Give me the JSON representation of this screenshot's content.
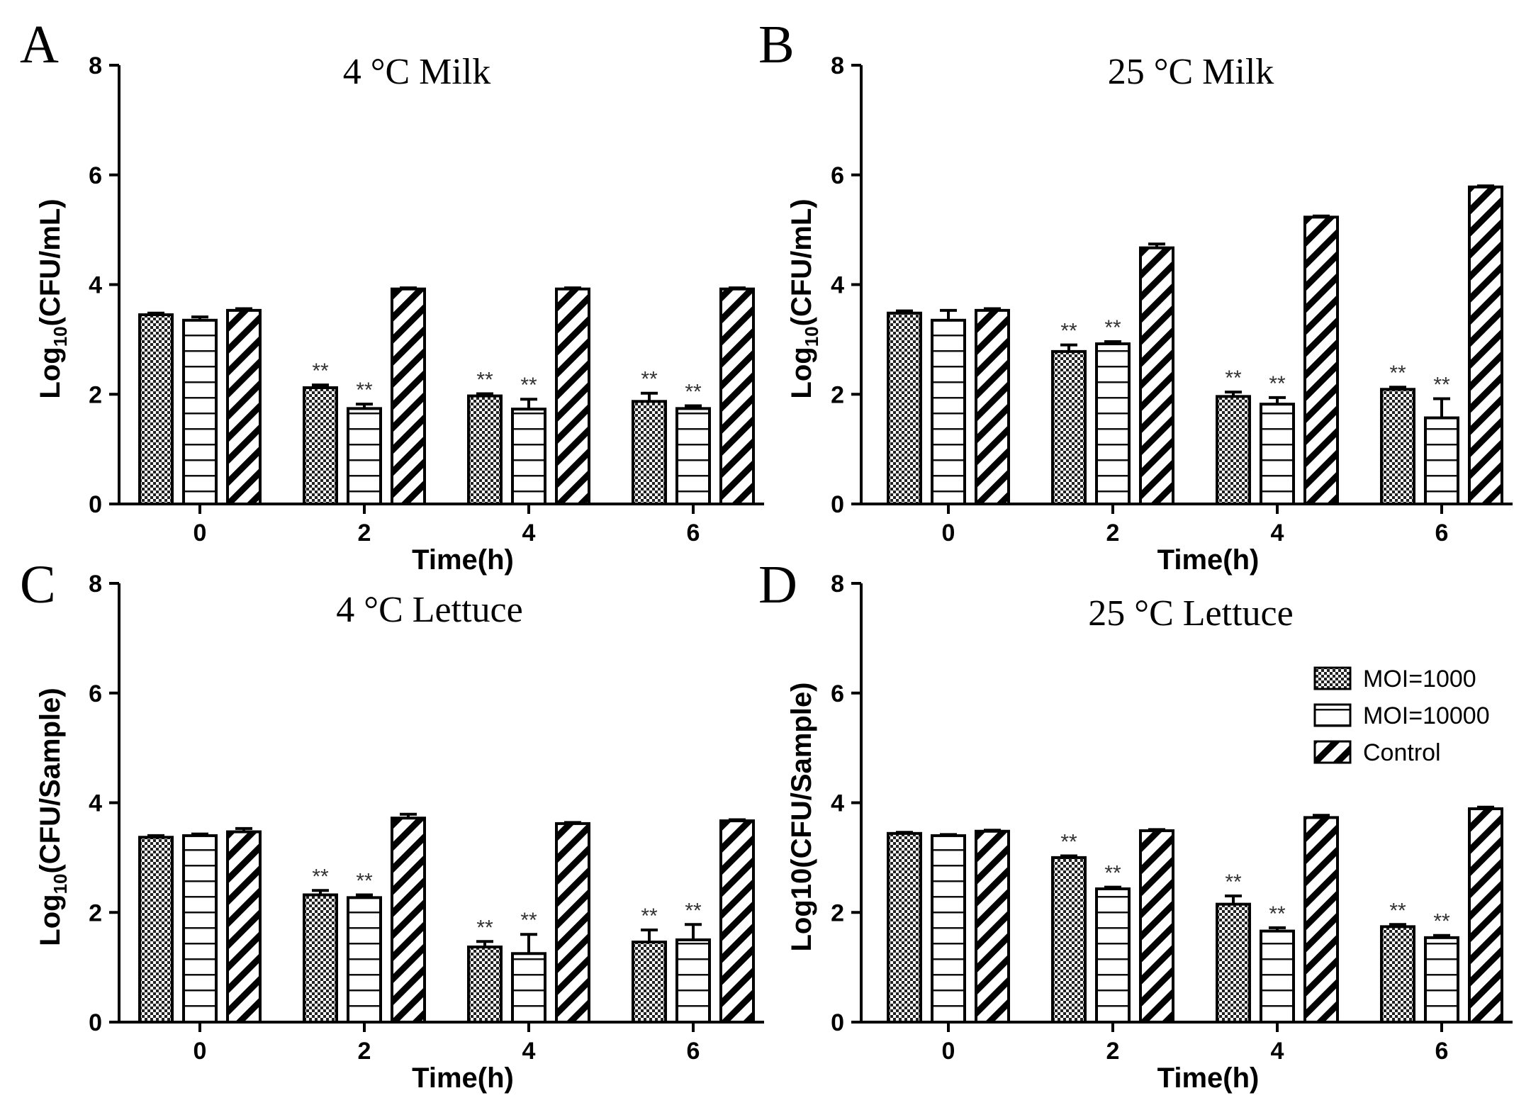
{
  "chart_data": [
    {
      "type": "bar",
      "panel_letter": "A",
      "title": "4 °C Milk",
      "xlabel": "Time(h)",
      "ylabel_parts": [
        "Log",
        "10",
        "(CFU/mL)"
      ],
      "ylim": [
        0,
        8
      ],
      "yticks": [
        0,
        2,
        4,
        6,
        8
      ],
      "categories": [
        "0",
        "2",
        "4",
        "6"
      ],
      "series": [
        {
          "name": "MOI=1000",
          "values": [
            3.45,
            2.12,
            1.97,
            1.87
          ],
          "errors": [
            0.03,
            0.05,
            0.04,
            0.15
          ],
          "sig": [
            "",
            "**",
            "**",
            "**"
          ]
        },
        {
          "name": "MOI=10000",
          "values": [
            3.35,
            1.74,
            1.73,
            1.74
          ],
          "errors": [
            0.06,
            0.08,
            0.18,
            0.05
          ],
          "sig": [
            "",
            "**",
            "**",
            "**"
          ]
        },
        {
          "name": "Control",
          "values": [
            3.53,
            3.92,
            3.92,
            3.92
          ],
          "errors": [
            0.03,
            0.02,
            0.02,
            0.02
          ],
          "sig": [
            "",
            "",
            "",
            ""
          ]
        }
      ]
    },
    {
      "type": "bar",
      "panel_letter": "B",
      "title": "25 °C Milk",
      "xlabel": "Time(h)",
      "ylabel_parts": [
        "Log",
        "10",
        "(CFU/mL)"
      ],
      "ylim": [
        0,
        8
      ],
      "yticks": [
        0,
        2,
        4,
        6,
        8
      ],
      "categories": [
        "0",
        "2",
        "4",
        "6"
      ],
      "series": [
        {
          "name": "MOI=1000",
          "values": [
            3.48,
            2.78,
            1.96,
            2.09
          ],
          "errors": [
            0.04,
            0.12,
            0.08,
            0.04
          ],
          "sig": [
            "",
            "**",
            "**",
            "**"
          ]
        },
        {
          "name": "MOI=10000",
          "values": [
            3.35,
            2.92,
            1.82,
            1.57
          ],
          "errors": [
            0.18,
            0.04,
            0.12,
            0.35
          ],
          "sig": [
            "",
            "**",
            "**",
            "**"
          ]
        },
        {
          "name": "Control",
          "values": [
            3.53,
            4.67,
            5.23,
            5.78
          ],
          "errors": [
            0.03,
            0.07,
            0.02,
            0.02
          ],
          "sig": [
            "",
            "",
            "",
            ""
          ]
        }
      ]
    },
    {
      "type": "bar",
      "panel_letter": "C",
      "title": "4 °C Lettuce",
      "xlabel": "Time(h)",
      "ylabel_parts": [
        "Log",
        "10",
        "(CFU/Sample)"
      ],
      "ylim": [
        0,
        8
      ],
      "yticks": [
        0,
        2,
        4,
        6,
        8
      ],
      "categories": [
        "0",
        "2",
        "4",
        "6"
      ],
      "series": [
        {
          "name": "MOI=1000",
          "values": [
            3.37,
            2.32,
            1.37,
            1.46
          ],
          "errors": [
            0.03,
            0.08,
            0.1,
            0.22
          ],
          "sig": [
            "",
            "**",
            "**",
            "**"
          ]
        },
        {
          "name": "MOI=10000",
          "values": [
            3.4,
            2.27,
            1.25,
            1.5
          ],
          "errors": [
            0.03,
            0.05,
            0.35,
            0.28
          ],
          "sig": [
            "",
            "**",
            "**",
            "**"
          ]
        },
        {
          "name": "Control",
          "values": [
            3.47,
            3.72,
            3.62,
            3.67
          ],
          "errors": [
            0.06,
            0.07,
            0.02,
            0.02
          ],
          "sig": [
            "",
            "",
            "",
            ""
          ]
        }
      ]
    },
    {
      "type": "bar",
      "panel_letter": "D",
      "title": "25 °C Lettuce",
      "xlabel": "Time(h)",
      "ylabel_parts": [
        "Log10(CFU/Sample)"
      ],
      "ylim": [
        0,
        8
      ],
      "yticks": [
        0,
        2,
        4,
        6,
        8
      ],
      "categories": [
        "0",
        "2",
        "4",
        "6"
      ],
      "series": [
        {
          "name": "MOI=1000",
          "values": [
            3.44,
            3.0,
            2.15,
            1.74
          ],
          "errors": [
            0.02,
            0.03,
            0.15,
            0.04
          ],
          "sig": [
            "",
            "**",
            "**",
            "**"
          ]
        },
        {
          "name": "MOI=10000",
          "values": [
            3.4,
            2.43,
            1.66,
            1.54
          ],
          "errors": [
            0.02,
            0.03,
            0.06,
            0.04
          ],
          "sig": [
            "",
            "**",
            "**",
            "**"
          ]
        },
        {
          "name": "Control",
          "values": [
            3.48,
            3.49,
            3.73,
            3.89
          ],
          "errors": [
            0.02,
            0.02,
            0.04,
            0.03
          ],
          "sig": [
            "",
            "",
            "",
            ""
          ]
        }
      ],
      "legend": {
        "position": "top-right",
        "entries": [
          "MOI=1000",
          "MOI=10000",
          "Control"
        ]
      }
    }
  ]
}
